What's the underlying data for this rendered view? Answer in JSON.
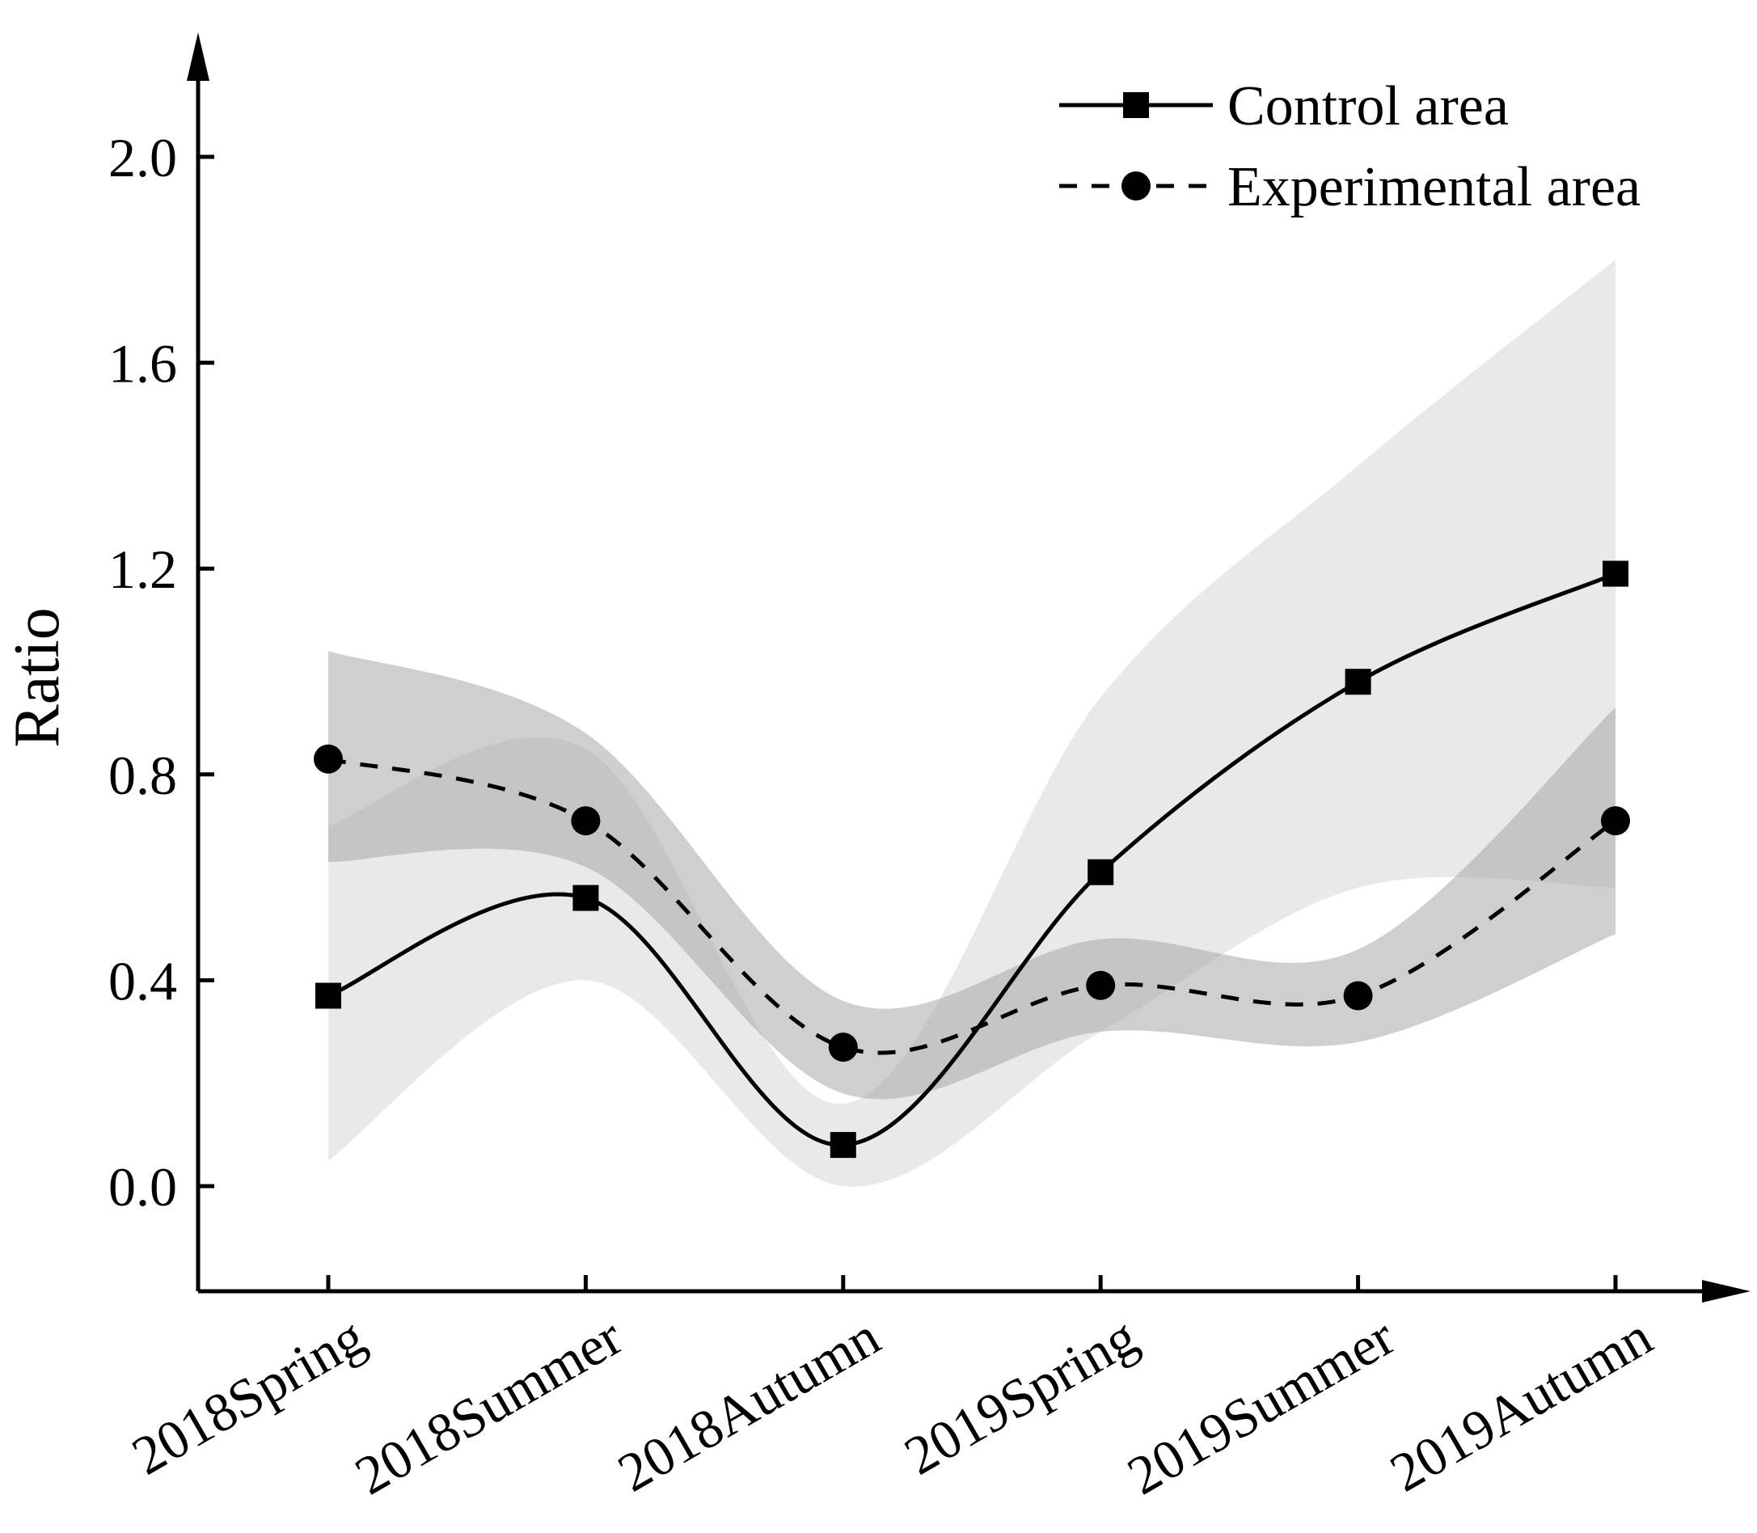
{
  "chart_data": {
    "type": "line",
    "title": "",
    "xlabel": "",
    "ylabel": "Ratio",
    "ylim": [
      -0.2,
      2.2
    ],
    "yticks": [
      0.0,
      0.4,
      0.8,
      1.2,
      1.6,
      2.0
    ],
    "ytick_labels": [
      "0.0",
      "0.4",
      "0.8",
      "1.2",
      "1.6",
      "2.0"
    ],
    "categories": [
      "2018Spring",
      "2018Summer",
      "2018Autumn",
      "2019Spring",
      "2019Summer",
      "2019Autumn"
    ],
    "legend_position": "top-right",
    "series": [
      {
        "name": "Control area",
        "line_style": "solid",
        "marker": "square",
        "color": "#000000",
        "band_color": "#cfcfcf",
        "values": [
          0.37,
          0.56,
          0.08,
          0.61,
          0.98,
          1.19
        ],
        "band_lower": [
          0.05,
          0.4,
          0.0,
          0.3,
          0.58,
          0.58
        ],
        "band_upper": [
          0.7,
          0.85,
          0.16,
          0.95,
          1.4,
          1.8
        ]
      },
      {
        "name": "Experimental area",
        "line_style": "dashed",
        "marker": "circle",
        "color": "#000000",
        "band_color": "#a8a8a8",
        "values": [
          0.83,
          0.71,
          0.27,
          0.39,
          0.37,
          0.71
        ],
        "band_lower": [
          0.63,
          0.62,
          0.18,
          0.3,
          0.28,
          0.49
        ],
        "band_upper": [
          1.04,
          0.88,
          0.36,
          0.48,
          0.46,
          0.93
        ]
      }
    ]
  }
}
